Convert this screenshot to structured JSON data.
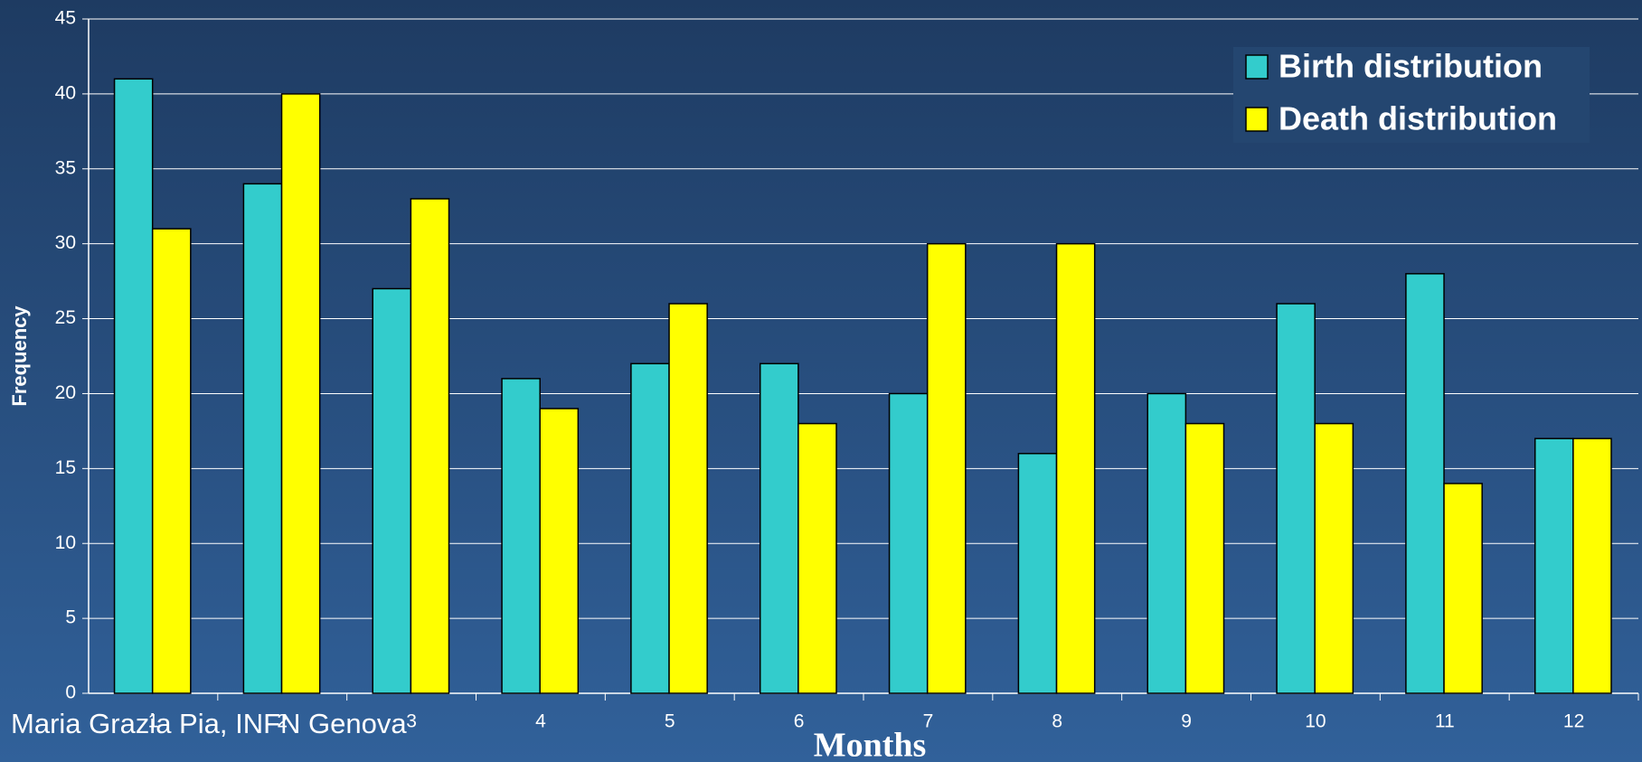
{
  "chart_data": {
    "type": "bar",
    "x_label": "Months",
    "y_label": "Frequency",
    "categories": [
      "1",
      "2",
      "3",
      "4",
      "5",
      "6",
      "7",
      "8",
      "9",
      "10",
      "11",
      "12"
    ],
    "series": [
      {
        "name": "Birth distribution",
        "color": "#33cccc",
        "values": [
          41,
          34,
          27,
          21,
          22,
          22,
          20,
          16,
          20,
          26,
          28,
          17
        ]
      },
      {
        "name": "Death distribution",
        "color": "#ffff00",
        "values": [
          31,
          40,
          33,
          19,
          26,
          18,
          30,
          30,
          18,
          18,
          14,
          17
        ]
      }
    ],
    "ylim": [
      0,
      45
    ],
    "yticks": [
      0,
      5,
      10,
      15,
      20,
      25,
      30,
      35,
      40,
      45
    ],
    "grid": true,
    "legend": "upper right"
  },
  "footer": "Maria Grazia Pia, INFN Genova"
}
